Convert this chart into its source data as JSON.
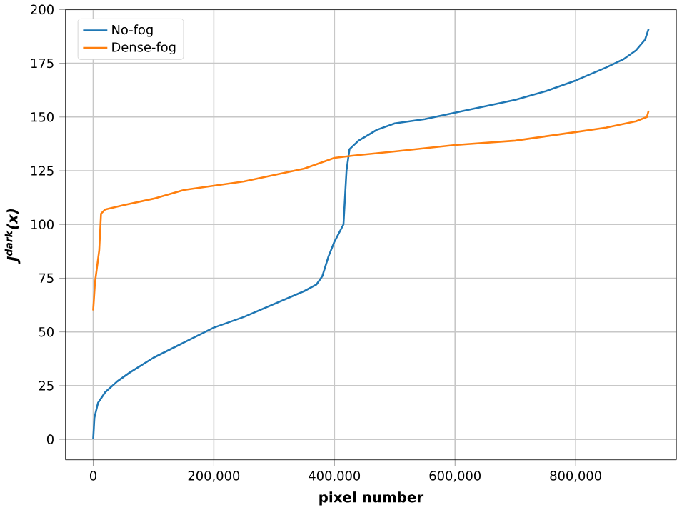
{
  "chart_data": {
    "type": "line",
    "xlabel": "pixel number",
    "ylabel": "J$^{dark}$(x)",
    "xlim": [
      -46000,
      967000
    ],
    "ylim": [
      -9.5,
      200
    ],
    "xticks": [
      {
        "value": 0,
        "label": "0"
      },
      {
        "value": 200000,
        "label": "200,000"
      },
      {
        "value": 400000,
        "label": "400,000"
      },
      {
        "value": 600000,
        "label": "600,000"
      },
      {
        "value": 800000,
        "label": "800,000"
      }
    ],
    "yticks": [
      0,
      25,
      50,
      75,
      100,
      125,
      150,
      175,
      200
    ],
    "grid": true,
    "legend": "top left",
    "line_style": "solid",
    "series": [
      {
        "name": "No-fog",
        "color": "#1f77b4",
        "x": [
          0,
          2000,
          8000,
          20000,
          40000,
          60000,
          100000,
          150000,
          200000,
          250000,
          300000,
          350000,
          370000,
          380000,
          390000,
          400000,
          415000,
          420000,
          425000,
          440000,
          470000,
          500000,
          550000,
          600000,
          650000,
          700000,
          750000,
          800000,
          850000,
          880000,
          900000,
          915000,
          921000
        ],
        "values": [
          0,
          10,
          17,
          22,
          27,
          31,
          38,
          45,
          52,
          57,
          63,
          69,
          72,
          76,
          85,
          92,
          100,
          125,
          135,
          139,
          144,
          147,
          149,
          152,
          155,
          158,
          162,
          167,
          173,
          177,
          181,
          186,
          191
        ]
      },
      {
        "name": "Dense-fog",
        "color": "#ff7f0e",
        "x": [
          0,
          3000,
          10000,
          13000,
          20000,
          50000,
          100000,
          150000,
          200000,
          250000,
          300000,
          350000,
          380000,
          400000,
          430000,
          500000,
          600000,
          700000,
          800000,
          850000,
          900000,
          918000,
          921000
        ],
        "values": [
          60,
          73,
          88,
          105,
          107,
          109,
          112,
          116,
          118,
          120,
          123,
          126,
          129,
          131,
          132,
          134,
          137,
          139,
          143,
          145,
          148,
          150,
          153
        ]
      }
    ]
  }
}
